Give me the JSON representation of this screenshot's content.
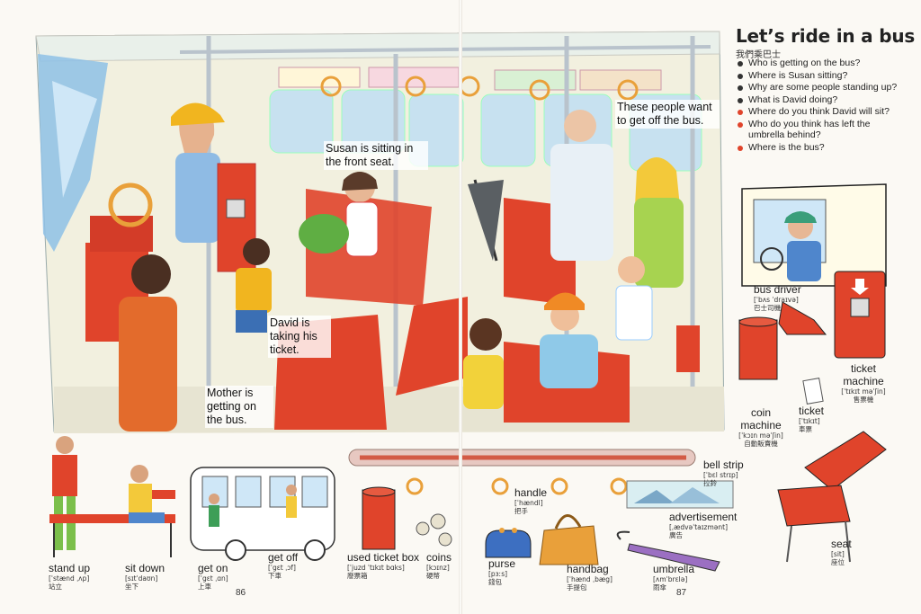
{
  "header": {
    "title": "Let’s ride in a bus",
    "subtitle": "我們乘巴士"
  },
  "questions": [
    {
      "text": "Who is getting on the bus?",
      "color": "#333333"
    },
    {
      "text": "Where is Susan sitting?",
      "color": "#333333"
    },
    {
      "text": "Why are some people standing up?",
      "color": "#333333"
    },
    {
      "text": "What is David doing?",
      "color": "#333333"
    },
    {
      "text": "Where do you think David will sit?",
      "color": "#e0442b"
    },
    {
      "text": "Who do you think has left the umbrella behind?",
      "color": "#e0442b"
    },
    {
      "text": "Where is the bus?",
      "color": "#e0442b"
    }
  ],
  "scene_callouts": {
    "susan": "Susan is sitting in the front seat.",
    "people_off": "These people want to get off the bus.",
    "david": "David is taking his ticket.",
    "mother": "Mother is getting on the bus."
  },
  "vocab": {
    "stand_up": {
      "word": "stand up",
      "phon": "[ˈstænd ˌʌp]",
      "zh": "站立"
    },
    "sit_down": {
      "word": "sit down",
      "phon": "[sɪtˈdaʊn]",
      "zh": "坐下"
    },
    "get_on": {
      "word": "get on",
      "phon": "[ˈgɛt ˌɑn]",
      "zh": "上車"
    },
    "get_off": {
      "word": "get off",
      "phon": "[ˈgɛt ˌɔf]",
      "zh": "下車"
    },
    "used_ticket_box": {
      "word": "used ticket box",
      "phon": "[ˈjuzd ˈtɪkɪt bɑks]",
      "zh": "廢票箱"
    },
    "coins": {
      "word": "coins",
      "phon": "[kɔɪnz]",
      "zh": "硬幣"
    },
    "purse": {
      "word": "purse",
      "phon": "[pɜːs]",
      "zh": "錢包"
    },
    "handle": {
      "word": "handle",
      "phon": "[ˈhændl]",
      "zh": "把手"
    },
    "handbag": {
      "word": "handbag",
      "phon": "[ˈhænd ˌbæg]",
      "zh": "手提包"
    },
    "umbrella": {
      "word": "umbrella",
      "phon": "[ʌmˈbrɛlə]",
      "zh": "雨傘"
    },
    "advertisement": {
      "word": "advertisement",
      "phon": "[ˌædvəˈtaɪzmənt]",
      "zh": "廣告"
    },
    "bell_strip": {
      "word": "bell strip",
      "phon": "[ˈbɛl strɪp]",
      "zh": "拉鈴"
    },
    "seat": {
      "word": "seat",
      "phon": "[sit]",
      "zh": "座位"
    },
    "bus_driver": {
      "word": "bus driver",
      "phon": "[ˈbʌs ˈdraɪvə]",
      "zh": "巴士司機"
    },
    "ticket_machine": {
      "word": "ticket machine",
      "phon": "[ˈtɪkɪt məˈʃin]",
      "zh": "售票機"
    },
    "coin_machine": {
      "word": "coin machine",
      "phon": "[ˈkɔɪn məˈʃin]",
      "zh": "自動販賣機"
    },
    "ticket": {
      "word": "ticket",
      "phon": "[ˈtɪkɪt]",
      "zh": "車票"
    }
  },
  "pages": {
    "left": "86",
    "right": "87"
  },
  "colors": {
    "bus_red": "#e0442b",
    "pole_grey": "#b9c3cc",
    "ring_orange": "#e9a03a",
    "sky_blue": "#6fa9d6"
  }
}
